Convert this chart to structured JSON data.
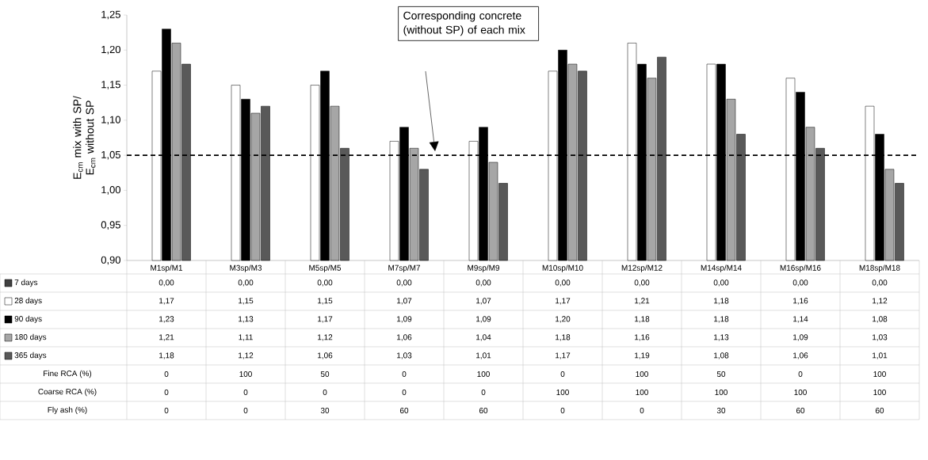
{
  "chart_data": [
    {
      "type": "bar",
      "ylabel": "E$_{cm}$ mix with SP/ E$_{cm}$ without SP",
      "categories": [
        "M1sp/M1",
        "M3sp/M3",
        "M5sp/M5",
        "M7sp/M7",
        "M9sp/M9",
        "M10sp/M10",
        "M12sp/M12",
        "M14sp/M14",
        "M16sp/M16",
        "M18sp/M18"
      ],
      "series": [
        {
          "name": "7 days",
          "color": "#404040",
          "values": [
            null,
            null,
            null,
            null,
            null,
            null,
            null,
            null,
            null,
            null
          ],
          "value_labels": [
            "0,00",
            "0,00",
            "0,00",
            "0,00",
            "0,00",
            "0,00",
            "0,00",
            "0,00",
            "0,00",
            "0,00"
          ]
        },
        {
          "name": "28 days",
          "color": "#ffffff",
          "values": [
            1.17,
            1.15,
            1.15,
            1.07,
            1.07,
            1.17,
            1.21,
            1.18,
            1.16,
            1.12
          ],
          "value_labels": [
            "1,17",
            "1,15",
            "1,15",
            "1,07",
            "1,07",
            "1,17",
            "1,21",
            "1,18",
            "1,16",
            "1,12"
          ]
        },
        {
          "name": "90 days",
          "color": "#000000",
          "values": [
            1.23,
            1.13,
            1.17,
            1.09,
            1.09,
            1.2,
            1.18,
            1.18,
            1.14,
            1.08
          ],
          "value_labels": [
            "1,23",
            "1,13",
            "1,17",
            "1,09",
            "1,09",
            "1,20",
            "1,18",
            "1,18",
            "1,14",
            "1,08"
          ]
        },
        {
          "name": "180 days",
          "color": "#a6a6a6",
          "values": [
            1.21,
            1.11,
            1.12,
            1.06,
            1.04,
            1.18,
            1.16,
            1.13,
            1.09,
            1.03
          ],
          "value_labels": [
            "1,21",
            "1,11",
            "1,12",
            "1,06",
            "1,04",
            "1,18",
            "1,16",
            "1,13",
            "1,09",
            "1,03"
          ]
        },
        {
          "name": "365 days",
          "color": "#595959",
          "values": [
            1.18,
            1.12,
            1.06,
            1.03,
            1.01,
            1.17,
            1.19,
            1.08,
            1.06,
            1.01
          ],
          "value_labels": [
            "1,18",
            "1,12",
            "1,06",
            "1,03",
            "1,01",
            "1,17",
            "1,19",
            "1,08",
            "1,06",
            "1,01"
          ]
        }
      ],
      "ylim": [
        0.9,
        1.25
      ],
      "yticks": [
        {
          "value": 0.9,
          "label": "0,90"
        },
        {
          "value": 0.95,
          "label": "0,95"
        },
        {
          "value": 1.0,
          "label": "1,00"
        },
        {
          "value": 1.05,
          "label": "1,05"
        },
        {
          "value": 1.1,
          "label": "1,10"
        },
        {
          "value": 1.15,
          "label": "1,15"
        },
        {
          "value": 1.2,
          "label": "1,20"
        },
        {
          "value": 1.25,
          "label": "1,25"
        }
      ],
      "ref_lines": [
        {
          "axis": "y",
          "value": 1.05,
          "color": "#000000",
          "line_style": "dashed"
        }
      ],
      "annotations": [
        "Corresponding concrete (without SP) of each mix"
      ],
      "legend": "bottom"
    },
    {
      "type": "other",
      "annotations": [
        "Fine RCA (%)",
        "0",
        "100",
        "50",
        "0",
        "100",
        "0",
        "100",
        "50",
        "0",
        "100",
        "Coarse RCA (%)",
        "0",
        "0",
        "0",
        "0",
        "0",
        "100",
        "100",
        "100",
        "100",
        "100",
        "Fly ash (%)",
        "0",
        "0",
        "30",
        "60",
        "60",
        "0",
        "0",
        "30",
        "60",
        "60"
      ]
    }
  ]
}
